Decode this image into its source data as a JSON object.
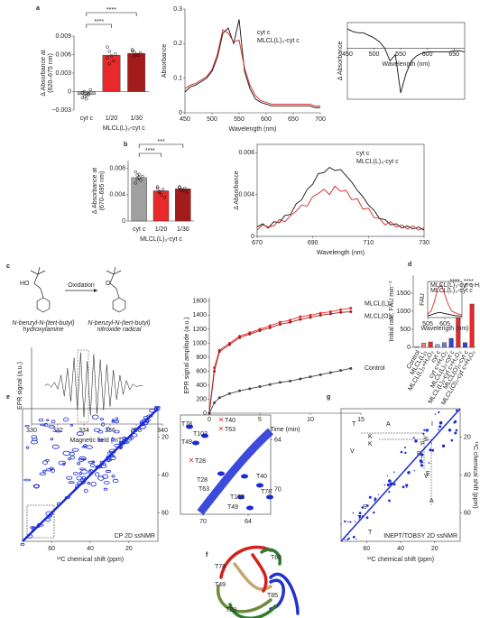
{
  "panels": [
    "a",
    "b",
    "c",
    "d",
    "e",
    "f",
    "g"
  ],
  "chart_data": [
    {
      "type": "bar",
      "y_label": [
        "Δ Absorbance at",
        "(620–675 nm)"
      ],
      "categories": [
        "cyt c",
        "1/20",
        "1/30"
      ],
      "group_label": "MLCL(L)₃-cyt c",
      "values": [
        -0.0005,
        0.0059,
        0.0062
      ],
      "colors": [
        "#b0b0b0",
        "#e8282b",
        "#a31c1c"
      ],
      "points": [
        [
          -0.0002,
          -0.0008,
          -0.0012,
          -0.0005,
          0.0003,
          -0.001,
          0,
          -0.0006,
          -0.0003
        ],
        [
          0.0072,
          0.0065,
          0.0058,
          0.005,
          0.0061,
          0.0055,
          0.0045
        ],
        [
          0.0068,
          0.0064,
          0.006,
          0.0059,
          0.0063,
          0.0066,
          0.0057
        ]
      ],
      "ylim": [
        -0.003,
        0.009
      ],
      "yticks": [
        {
          "value": -0.003,
          "label": "−0.003"
        },
        0,
        0.003,
        0.006,
        0.009
      ],
      "annotations": [
        "****",
        "****"
      ]
    },
    {
      "type": "line",
      "y_label": "Absorbance",
      "x_label": "Wavelength (nm)",
      "x": [
        450,
        460,
        470,
        480,
        490,
        500,
        510,
        520,
        530,
        540,
        550,
        560,
        570,
        580,
        590,
        600,
        610,
        620,
        630,
        640,
        650,
        660,
        670,
        680,
        690,
        700
      ],
      "series": [
        {
          "name": "cyt c",
          "color": "#111111",
          "values": [
            0.06,
            0.075,
            0.08,
            0.09,
            0.1,
            0.12,
            0.16,
            0.23,
            0.245,
            0.2,
            0.27,
            0.12,
            0.07,
            0.04,
            0.03,
            0.025,
            0.02,
            0.02,
            0.02,
            0.02,
            0.02,
            0.02,
            0.02,
            0.02,
            0.015,
            0.015
          ]
        },
        {
          "name": "MLCL(L)₃-cyt c",
          "color": "#d42020",
          "values": [
            0.07,
            0.08,
            0.085,
            0.095,
            0.105,
            0.125,
            0.17,
            0.24,
            0.23,
            0.205,
            0.21,
            0.13,
            0.08,
            0.05,
            0.035,
            0.03,
            0.025,
            0.025,
            0.025,
            0.025,
            0.025,
            0.025,
            0.025,
            0.025,
            0.02,
            0.02
          ]
        }
      ],
      "xlim": [
        450,
        700
      ],
      "xticks": [
        450,
        500,
        550,
        600,
        650,
        700
      ],
      "ylim": [
        0,
        0.3
      ],
      "yticks": [
        0,
        0.1,
        0.2,
        0.3
      ]
    },
    {
      "type": "line",
      "y_label": "Δ Absorbance",
      "x_label": "Wavelength (nm)",
      "x": [
        450,
        460,
        470,
        480,
        490,
        500,
        510,
        520,
        530,
        540,
        550,
        560,
        570,
        580,
        590,
        600,
        610,
        620,
        630,
        640,
        650,
        660,
        670
      ],
      "series": [
        {
          "color": "#111111",
          "values": [
            0.015,
            0.013,
            0.012,
            0.012,
            0.01,
            0.008,
            0.005,
            0,
            -0.01,
            -0.005,
            -0.035,
            -0.02,
            -0.01,
            -0.006,
            -0.004,
            -0.003,
            -0.003,
            -0.003,
            -0.003,
            -0.003,
            -0.002,
            -0.002,
            -0.003
          ]
        }
      ],
      "xlim": [
        450,
        670
      ],
      "xticks": [
        450,
        500,
        550,
        600,
        650
      ],
      "ylim": [
        -0.04,
        0.02
      ]
    },
    {
      "type": "bar",
      "y_label": [
        "Δ Absorbance at",
        "(670–695 nm)"
      ],
      "categories": [
        "cyt c",
        "1/20",
        "1/30"
      ],
      "group_label": "MLCL(L)₃-cyt c",
      "values": [
        0.0066,
        0.0046,
        0.0049
      ],
      "colors": [
        "#a0a0a0",
        "#e8282b",
        "#a31c1c"
      ],
      "points": [
        [
          0.0075,
          0.007,
          0.0066,
          0.0062,
          0.0068,
          0.0058,
          0.0064,
          0.0071
        ],
        [
          0.005,
          0.0044,
          0.004,
          0.0048,
          0.0036,
          0.0052,
          0.0045
        ],
        [
          0.0052,
          0.0048,
          0.0046,
          0.005,
          0.0044,
          0.0051
        ]
      ],
      "ylim": [
        0,
        0.0092
      ],
      "yticks": [
        0,
        0.004,
        0.008
      ],
      "annotations": [
        "***",
        "****"
      ]
    },
    {
      "type": "line",
      "y_label": "Δ Absorbance",
      "x_label": "Wavelength (nm)",
      "x": [
        670,
        672,
        674,
        676,
        678,
        680,
        682,
        684,
        686,
        688,
        690,
        692,
        694,
        696,
        698,
        700,
        702,
        704,
        706,
        708,
        710,
        712,
        714,
        716,
        718,
        720,
        722,
        724,
        726,
        728,
        730
      ],
      "series": [
        {
          "name": "cyt c",
          "color": "#111111",
          "values": [
            0.0009,
            0.0012,
            0.0008,
            0.0014,
            0.0013,
            0.002,
            0.0021,
            0.0031,
            0.0035,
            0.0045,
            0.005,
            0.006,
            0.0061,
            0.0066,
            0.0063,
            0.0064,
            0.0058,
            0.0052,
            0.0044,
            0.0038,
            0.003,
            0.0025,
            0.0017,
            0.0016,
            0.0011,
            0.0012,
            0.0008,
            0.001,
            0.0007,
            0.0009,
            0.0006
          ]
        },
        {
          "name": "MLCL(L)₃-cyt c",
          "color": "#d42020",
          "values": [
            0.0006,
            0.0011,
            0.0009,
            0.001,
            0.0016,
            0.0014,
            0.002,
            0.0024,
            0.003,
            0.0029,
            0.0038,
            0.0041,
            0.0045,
            0.004,
            0.0048,
            0.0043,
            0.0044,
            0.0035,
            0.0036,
            0.0026,
            0.0027,
            0.0018,
            0.0017,
            0.0011,
            0.0014,
            0.0009,
            0.0011,
            0.0007,
            0.001,
            0.0006,
            0.0008
          ]
        }
      ],
      "xlim": [
        670,
        730
      ],
      "xticks": [
        670,
        690,
        710,
        730
      ],
      "ylim": [
        0,
        0.0088
      ],
      "yticks": [
        0,
        0.004,
        0.008
      ]
    },
    {
      "type": "line",
      "y_label": "EPR signal (a.u.)",
      "x_label": "Magnetic field (mT)",
      "x": [
        331,
        331.25,
        331.5,
        331.75,
        332,
        332.25,
        332.5,
        332.75,
        333,
        333.25,
        333.5,
        333.75,
        334,
        334.25,
        334.5,
        334.75,
        335,
        335.25,
        335.5,
        335.75,
        336,
        336.25,
        336.5,
        336.75,
        337,
        337.25,
        337.5,
        337.75,
        338,
        338.25,
        338.5
      ],
      "series": [
        {
          "color": "#111111",
          "values": [
            0,
            0.05,
            -0.05,
            0.1,
            -0.1,
            0.3,
            -0.3,
            0.5,
            -0.45,
            0.8,
            -0.7,
            0.95,
            -0.9,
            0.7,
            -0.85,
            0.9,
            -0.8,
            0.75,
            -0.7,
            0.6,
            -0.6,
            0.45,
            -0.4,
            0.3,
            -0.25,
            0.15,
            -0.12,
            0.05,
            -0.03,
            0,
            0
          ]
        }
      ],
      "xlim": [
        330,
        340
      ],
      "xticks": [
        330,
        332,
        334,
        336,
        338,
        340
      ],
      "ylim": [
        -1.1,
        1.1
      ]
    },
    {
      "type": "line",
      "y_label": "EPR signal amplitude (a.u.)",
      "x_label": "Time (min)",
      "x": [
        0,
        0.5,
        1,
        2,
        3,
        4,
        5,
        6,
        7,
        8,
        9,
        10,
        11,
        12,
        13,
        14
      ],
      "series": [
        {
          "name": "MLCL(L)₃",
          "color": "#e8282b",
          "values": [
            0,
            650,
            900,
            1000,
            1100,
            1150,
            1200,
            1250,
            1300,
            1330,
            1380,
            1400,
            1430,
            1450,
            1480,
            1500
          ]
        },
        {
          "name": "MLCL(O)₃",
          "color": "#a31c1c",
          "values": [
            0,
            600,
            880,
            980,
            1080,
            1130,
            1180,
            1220,
            1270,
            1300,
            1340,
            1370,
            1400,
            1420,
            1440,
            1450
          ]
        },
        {
          "name": "Control",
          "color": "#444444",
          "values": [
            0,
            150,
            220,
            280,
            320,
            350,
            380,
            410,
            440,
            460,
            490,
            520,
            550,
            580,
            610,
            640
          ]
        }
      ],
      "xlim": [
        0,
        15
      ],
      "xticks": [
        0,
        5,
        10,
        15
      ],
      "ylim": [
        0,
        1650
      ],
      "yticks": [
        0,
        200,
        400,
        600,
        800,
        1000,
        1200,
        1400,
        1600
      ]
    },
    {
      "type": "bar",
      "y_label": "Initial rate, FAU min⁻¹",
      "categories": [
        "Control",
        "MLCL(L)₃",
        "MLCL(L)₃+H₂O₂",
        "cyt c",
        "cyt c+H₂O₂",
        "MLCL(L)₃-cyt c",
        "MLCL(L)₃-cyt c+H₂O₂",
        "MLCL(O)₃-cyt c",
        "MLCL(O)₃-cyt c+H₂O₂"
      ],
      "values": [
        20,
        120,
        150,
        80,
        130,
        250,
        1600,
        130,
        1200
      ],
      "colors": [
        "#bbbbbb",
        "#f08080",
        "#e8282b",
        "#9aa8e8",
        "#6f7fd8",
        "#3344cc",
        "#e8282b",
        "#3344cc",
        "#e8282b"
      ],
      "ylim": [
        0,
        2000
      ],
      "yticks": [
        0,
        500,
        1000,
        1500
      ],
      "annotations": [
        "****",
        "****"
      ]
    },
    {
      "type": "line",
      "y_label": "FAU",
      "x_label": "Wavelength (nm)",
      "x": [
        505,
        525,
        545,
        565,
        585,
        605,
        625,
        645,
        665,
        685,
        705
      ],
      "series": [
        {
          "name": "MLCL(L)₃-cyt c-H₂O₂",
          "color": "#e8282b",
          "values": [
            0.1,
            0.2,
            0.5,
            0.9,
            1,
            0.7,
            0.4,
            0.2,
            0.15,
            0.1,
            0.1
          ]
        },
        {
          "name": "MLCL(L)₃-cyt c",
          "color": "#111111",
          "values": [
            0.05,
            0.08,
            0.12,
            0.15,
            0.15,
            0.12,
            0.1,
            0.08,
            0.06,
            0.05,
            0.05
          ]
        }
      ],
      "xlim": [
        505,
        705
      ],
      "xticks": [
        505,
        605
      ],
      "ylim": [
        0,
        1.1
      ]
    }
  ],
  "chemistry": {
    "arrow_label": "Oxidation",
    "left_group": "HO",
    "right_group": "O",
    "reagent": [
      "N-benzyl-N-(tert-butyl)",
      "hydroxylamine"
    ],
    "product": [
      "N-benzyl-N-(tert-butyl)",
      "nitroxide radical"
    ]
  },
  "nmr_e": {
    "label": "CP 2D ssNMR",
    "x_label": "¹³C chemical shift (ppm)",
    "xlim": [
      75,
      5
    ],
    "xticks": [
      60,
      40,
      20
    ],
    "ylim": [
      5,
      75
    ],
    "yticks": [
      20,
      40,
      60
    ],
    "zoom": {
      "xlim": [
        73,
        61
      ],
      "xticks": [
        70,
        64
      ],
      "ylim": [
        61,
        73
      ],
      "yticks": [
        64,
        70
      ],
      "peaks": [
        "T78",
        "T102",
        "T49",
        "T28",
        "T63",
        "T40",
        "T102",
        "T49",
        "T78"
      ],
      "shifted_peaks": [
        "T40",
        "T63",
        "T28"
      ]
    }
  },
  "structure": {
    "labels": [
      "T78",
      "T49",
      "T28",
      "T63",
      "T85"
    ]
  },
  "nmr_g": {
    "label": "INEPT/TOBSY 2D ssNMR",
    "x_label": "¹³C chemical shift (ppm)",
    "y_label": "¹³C chemical shift (ppm)",
    "xlim": [
      75,
      5
    ],
    "xticks": [
      60,
      40,
      20
    ],
    "ylim": [
      5,
      75
    ],
    "yticks": [
      20,
      40,
      60
    ],
    "residues": [
      "T",
      "A",
      "K",
      "K",
      "V",
      "I",
      "S",
      "T",
      "S",
      "P",
      "E",
      "V",
      "A",
      "T",
      "R"
    ]
  }
}
